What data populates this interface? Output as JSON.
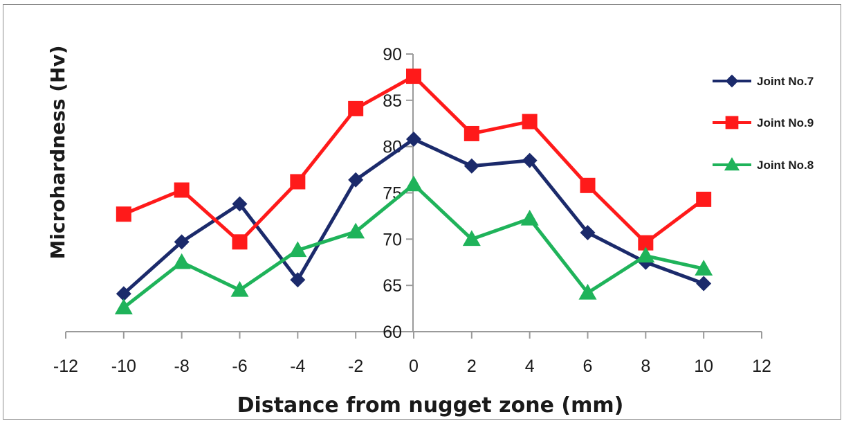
{
  "chart_data": {
    "type": "line",
    "title": "",
    "xlabel": "Distance from nugget zone (mm)",
    "ylabel": "Microhardness (Hv)",
    "xlim": [
      -12,
      12
    ],
    "ylim": [
      60,
      90
    ],
    "xticks": [
      -12,
      -10,
      -8,
      -6,
      -4,
      -2,
      0,
      2,
      4,
      6,
      8,
      10,
      12
    ],
    "yticks": [
      60,
      65,
      70,
      75,
      80,
      85,
      90
    ],
    "grid": false,
    "legend_position": "right",
    "x": [
      -10,
      -8,
      -6,
      -4,
      -2,
      0,
      2,
      4,
      6,
      8,
      10
    ],
    "series": [
      {
        "name": "Joint No.7",
        "color": "#1b2a6b",
        "marker": "diamond",
        "values": [
          64.1,
          69.7,
          73.8,
          65.6,
          76.4,
          80.8,
          77.9,
          78.5,
          70.7,
          67.5,
          65.2
        ]
      },
      {
        "name": "Joint No.9",
        "color": "#ff1a1a",
        "marker": "square",
        "values": [
          72.7,
          75.3,
          69.7,
          76.2,
          84.1,
          87.6,
          81.4,
          82.7,
          75.8,
          69.6,
          74.3
        ]
      },
      {
        "name": "Joint No.8",
        "color": "#1fb35a",
        "marker": "triangle",
        "values": [
          62.6,
          67.5,
          64.5,
          68.8,
          70.8,
          75.9,
          70.0,
          72.2,
          64.2,
          68.2,
          66.8
        ]
      }
    ]
  }
}
